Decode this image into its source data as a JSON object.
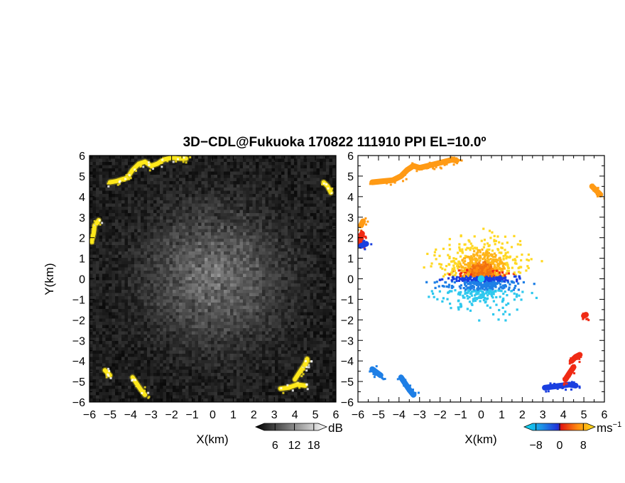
{
  "title": "3D−CDL@Fukuoka 170822 111910 PPI EL=10.0º",
  "chart_data": [
    {
      "type": "heatmap",
      "quantity": "intensity",
      "xlabel": "X(km)",
      "ylabel": "Y(km)",
      "xlim": [
        -6,
        6
      ],
      "ylim": [
        -6,
        6
      ],
      "xticks": [
        "−6",
        "−5",
        "−4",
        "−3",
        "−2",
        "−1",
        "0",
        "1",
        "2",
        "3",
        "4",
        "5",
        "6"
      ],
      "yticks": [
        "−6",
        "−5",
        "−4",
        "−3",
        "−2",
        "−1",
        "0",
        "1",
        "2",
        "3",
        "4",
        "5",
        "6"
      ],
      "colorbar": {
        "unit": "dB",
        "ticks": [
          "6",
          "12",
          "18"
        ],
        "range": [
          0,
          22
        ]
      },
      "colors": {
        "background": "#1e1e1e",
        "echo": "#ffe81a"
      },
      "echo_segments": [
        {
          "x": [
            -4.1,
            -3.9,
            -3.6,
            -3.3,
            -3.0,
            -2.7,
            -2.4,
            -2.0,
            -1.6,
            -1.3
          ],
          "y": [
            5.0,
            5.3,
            5.6,
            5.7,
            5.5,
            5.6,
            5.8,
            5.9,
            5.85,
            5.85
          ]
        },
        {
          "x": [
            -5.0,
            -4.7,
            -4.4,
            -4.2
          ],
          "y": [
            4.7,
            4.75,
            4.85,
            4.9
          ]
        },
        {
          "x": [
            5.4,
            5.6,
            5.75
          ],
          "y": [
            4.7,
            4.5,
            4.2
          ]
        },
        {
          "x": [
            -5.9,
            -5.8,
            -5.75
          ],
          "y": [
            1.8,
            2.2,
            2.6
          ]
        },
        {
          "x": [
            -5.65,
            -5.55
          ],
          "y": [
            2.7,
            2.85
          ]
        },
        {
          "x": [
            -5.25,
            -5.1,
            -5.0
          ],
          "y": [
            -4.45,
            -4.6,
            -4.7
          ]
        },
        {
          "x": [
            -3.9,
            -3.7,
            -3.5,
            -3.3
          ],
          "y": [
            -4.8,
            -5.1,
            -5.4,
            -5.65
          ]
        },
        {
          "x": [
            3.3,
            3.7,
            4.1,
            4.5
          ],
          "y": [
            -5.35,
            -5.3,
            -5.15,
            -5.2
          ]
        },
        {
          "x": [
            4.0,
            4.2,
            4.4,
            4.6
          ],
          "y": [
            -4.9,
            -4.6,
            -4.3,
            -4.0
          ]
        },
        {
          "x": [
            4.5,
            4.6
          ],
          "y": [
            -4.2,
            -3.9
          ]
        }
      ]
    },
    {
      "type": "heatmap",
      "quantity": "doppler-velocity",
      "xlabel": "X(km)",
      "xlim": [
        -6,
        6
      ],
      "ylim": [
        -6,
        6
      ],
      "xticks": [
        "−6",
        "−5",
        "−4",
        "−3",
        "−2",
        "−1",
        "0",
        "1",
        "2",
        "3",
        "4",
        "5",
        "6"
      ],
      "yticks": [
        "−6",
        "−5",
        "−4",
        "−3",
        "−2",
        "−1",
        "0",
        "1",
        "2",
        "3",
        "4",
        "5",
        "6"
      ],
      "colorbar": {
        "unit": "ms",
        "unit_exponent": "−1",
        "ticks": [
          "−8",
          "0",
          "8"
        ],
        "range": [
          -12,
          12
        ]
      },
      "colors": {
        "neg_strong": "#1a3fe0",
        "neg": "#1e7fe6",
        "neg_weak": "#2ec8ee",
        "pos_weak": "#ffd21a",
        "pos": "#ff9a14",
        "pos_strong": "#f02a14"
      },
      "echo_segments": [
        {
          "x": [
            -5.3,
            -4.8,
            -4.3,
            -3.9,
            -3.6,
            -3.3,
            -3.0,
            -2.6,
            -2.2,
            -1.8,
            -1.4,
            -1.2
          ],
          "y": [
            4.7,
            4.75,
            4.8,
            5.0,
            5.3,
            5.5,
            5.4,
            5.5,
            5.6,
            5.7,
            5.8,
            5.75
          ],
          "v": 7
        },
        {
          "x": [
            5.4,
            5.6,
            5.8
          ],
          "y": [
            4.5,
            4.3,
            4.1
          ],
          "v": 5
        },
        {
          "x": [
            -5.85,
            -5.75
          ],
          "y": [
            2.6,
            2.8
          ],
          "v": 7
        },
        {
          "x": [
            -5.9,
            -5.85,
            -5.8
          ],
          "y": [
            1.7,
            2.0,
            2.2
          ],
          "v": 10
        },
        {
          "x": [
            -5.85,
            -5.6
          ],
          "y": [
            1.6,
            1.7
          ],
          "v": -10
        },
        {
          "x": [
            -5.3,
            -5.1,
            -4.9
          ],
          "y": [
            -4.4,
            -4.55,
            -4.7
          ],
          "v": -6
        },
        {
          "x": [
            -3.9,
            -3.7,
            -3.5,
            -3.3
          ],
          "y": [
            -4.8,
            -5.1,
            -5.4,
            -5.65
          ],
          "v": -6
        },
        {
          "x": [
            3.1,
            3.5,
            3.9,
            4.3,
            4.6
          ],
          "y": [
            -5.3,
            -5.25,
            -5.2,
            -5.15,
            -5.2
          ],
          "v": -11
        },
        {
          "x": [
            4.1,
            4.3,
            4.5
          ],
          "y": [
            -4.9,
            -4.6,
            -4.3
          ],
          "v": 10
        },
        {
          "x": [
            4.4,
            4.6,
            4.8
          ],
          "y": [
            -4.0,
            -3.8,
            -3.7
          ],
          "v": 10
        },
        {
          "x": [
            5.0,
            5.1
          ],
          "y": [
            -1.8,
            -1.75
          ],
          "v": 10
        }
      ]
    }
  ]
}
